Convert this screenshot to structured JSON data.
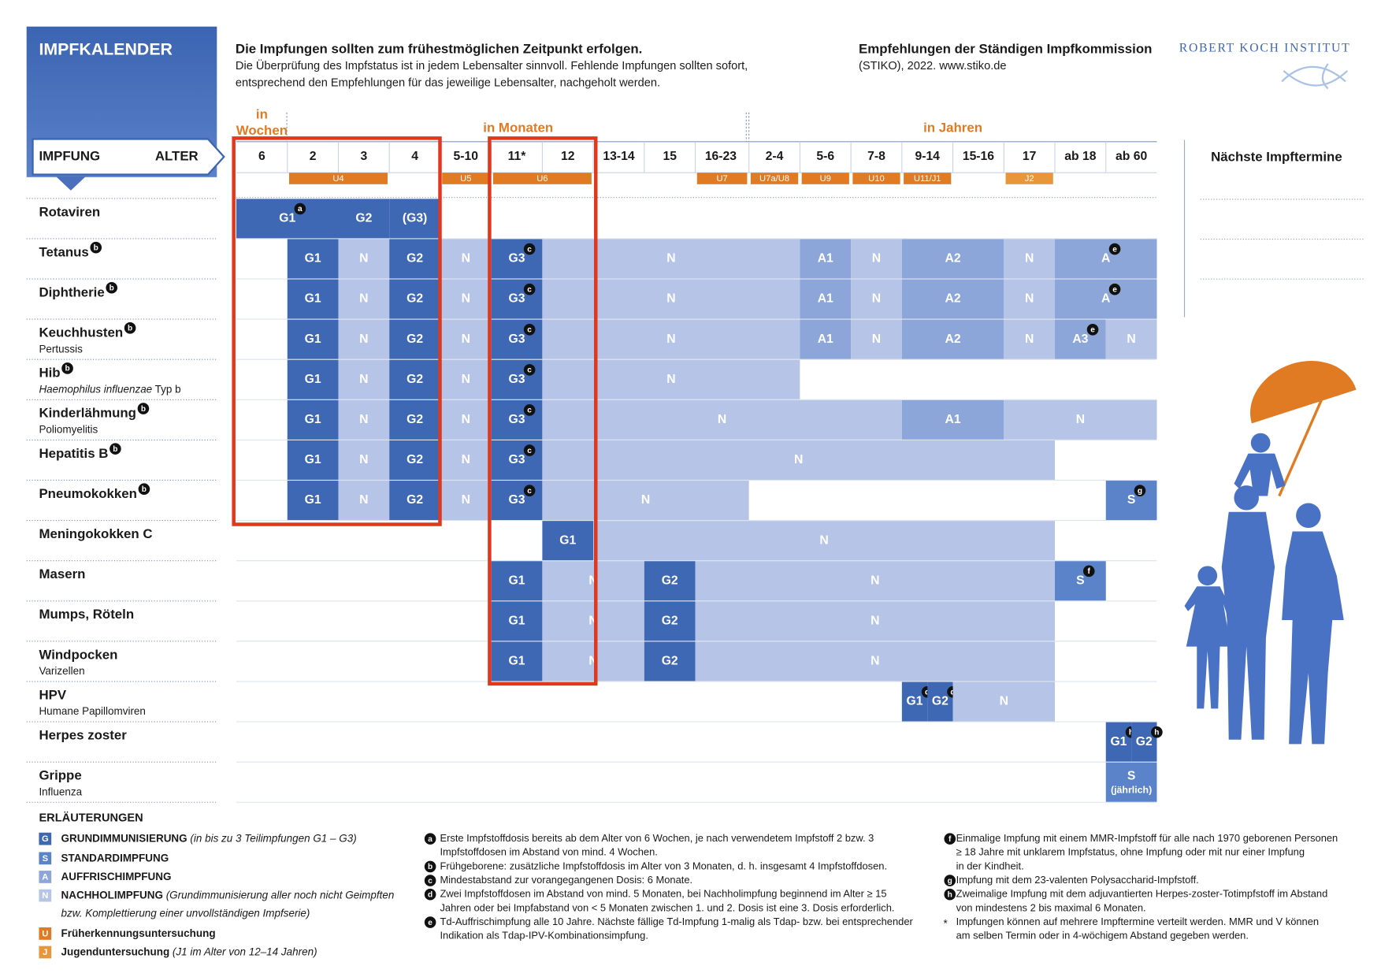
{
  "header": {
    "badge": "IMPFKALENDER",
    "headline": "Die Impfungen sollten zum frühestmöglichen Zeitpunkt erfolgen.",
    "text_lines": [
      "Die Überprüfung des Impfstatus ist in jedem Lebensalter sinnvoll. Fehlende Impfungen sollten sofort,",
      "entsprechend den Empfehlungen für das jeweilige Lebensalter, nachgeholt werden."
    ],
    "source_title": "Empfehlungen der Ständigen Impfkommission",
    "source_line": "(STIKO), 2022. www.stiko.de",
    "institute": "ROBERT KOCH INSTITUT"
  },
  "table": {
    "corner_left": "IMPFUNG",
    "corner_right": "ALTER",
    "groups": [
      {
        "lines": [
          "in",
          "Wochen"
        ]
      },
      {
        "lines": [
          "in Monaten"
        ]
      },
      {
        "lines": [
          "in Jahren"
        ]
      }
    ],
    "ages": [
      "6",
      "2",
      "3",
      "4",
      "5-10",
      "11*",
      "12",
      "13-14",
      "15",
      "16-23",
      "2-4",
      "5-6",
      "7-8",
      "9-14",
      "15-16",
      "17",
      "ab 18",
      "ab 60"
    ],
    "checkups": [
      "U4",
      "U5",
      "U6",
      "U7",
      "U7a/U8",
      "U9",
      "U10",
      "U11/J1",
      "J2"
    ],
    "palette": {
      "G": "#3e67b4",
      "N": "#b5c4e7",
      "A": "#8da6da",
      "S": "#5a83ca"
    },
    "rows": [
      {
        "name": "Rotaviren",
        "cells": [
          {
            "text": "G1",
            "kind": "G",
            "note": "a"
          },
          {
            "text": "G2",
            "kind": "G"
          },
          {
            "text": "(G3)",
            "kind": "G"
          }
        ]
      },
      {
        "name": "Tetanus",
        "note": "b",
        "cells": [
          {
            "text": "G1",
            "kind": "G"
          },
          {
            "text": "N",
            "kind": "N"
          },
          {
            "text": "G2",
            "kind": "G"
          },
          {
            "text": "N",
            "kind": "N"
          },
          {
            "text": "G3",
            "kind": "G",
            "note": "c"
          },
          {
            "text": "N",
            "kind": "N"
          },
          {
            "text": "A1",
            "kind": "A"
          },
          {
            "text": "N",
            "kind": "N"
          },
          {
            "text": "A2",
            "kind": "A"
          },
          {
            "text": "N",
            "kind": "N"
          },
          {
            "text": "A",
            "kind": "A",
            "note": "e"
          }
        ]
      },
      {
        "name": "Diphtherie",
        "note": "b",
        "cells": [
          {
            "text": "G1",
            "kind": "G"
          },
          {
            "text": "N",
            "kind": "N"
          },
          {
            "text": "G2",
            "kind": "G"
          },
          {
            "text": "N",
            "kind": "N"
          },
          {
            "text": "G3",
            "kind": "G",
            "note": "c"
          },
          {
            "text": "N",
            "kind": "N"
          },
          {
            "text": "A1",
            "kind": "A"
          },
          {
            "text": "N",
            "kind": "N"
          },
          {
            "text": "A2",
            "kind": "A"
          },
          {
            "text": "N",
            "kind": "N"
          },
          {
            "text": "A",
            "kind": "A",
            "note": "e"
          }
        ]
      },
      {
        "name": "Keuchhusten",
        "note": "b",
        "subtitle": "Pertussis",
        "cells": [
          {
            "text": "G1",
            "kind": "G"
          },
          {
            "text": "N",
            "kind": "N"
          },
          {
            "text": "G2",
            "kind": "G"
          },
          {
            "text": "N",
            "kind": "N"
          },
          {
            "text": "G3",
            "kind": "G",
            "note": "c"
          },
          {
            "text": "N",
            "kind": "N"
          },
          {
            "text": "A1",
            "kind": "A"
          },
          {
            "text": "N",
            "kind": "N"
          },
          {
            "text": "A2",
            "kind": "A"
          },
          {
            "text": "N",
            "kind": "N"
          },
          {
            "text": "A3",
            "kind": "A",
            "note": "e"
          },
          {
            "text": "N",
            "kind": "N"
          }
        ]
      },
      {
        "name": "Hib",
        "note": "b",
        "subtitle_italic": "Haemophilus influenzae",
        "subtitle": " Typ b",
        "cells": [
          {
            "text": "G1",
            "kind": "G"
          },
          {
            "text": "N",
            "kind": "N"
          },
          {
            "text": "G2",
            "kind": "G"
          },
          {
            "text": "N",
            "kind": "N"
          },
          {
            "text": "G3",
            "kind": "G",
            "note": "c"
          },
          {
            "text": "N",
            "kind": "N"
          }
        ]
      },
      {
        "name": "Kinderlähmung",
        "note": "b",
        "subtitle": "Poliomyelitis",
        "cells": [
          {
            "text": "G1",
            "kind": "G"
          },
          {
            "text": "N",
            "kind": "N"
          },
          {
            "text": "G2",
            "kind": "G"
          },
          {
            "text": "N",
            "kind": "N"
          },
          {
            "text": "G3",
            "kind": "G",
            "note": "c"
          },
          {
            "text": "N",
            "kind": "N"
          },
          {
            "text": "A1",
            "kind": "A"
          },
          {
            "text": "N",
            "kind": "N"
          }
        ]
      },
      {
        "name": "Hepatitis B",
        "note": "b",
        "cells": [
          {
            "text": "G1",
            "kind": "G"
          },
          {
            "text": "N",
            "kind": "N"
          },
          {
            "text": "G2",
            "kind": "G"
          },
          {
            "text": "N",
            "kind": "N"
          },
          {
            "text": "G3",
            "kind": "G",
            "note": "c"
          },
          {
            "text": "N",
            "kind": "N"
          }
        ]
      },
      {
        "name": "Pneumokokken",
        "note": "b",
        "cells": [
          {
            "text": "G1",
            "kind": "G"
          },
          {
            "text": "N",
            "kind": "N"
          },
          {
            "text": "G2",
            "kind": "G"
          },
          {
            "text": "N",
            "kind": "N"
          },
          {
            "text": "G3",
            "kind": "G",
            "note": "c"
          },
          {
            "text": "N",
            "kind": "N"
          },
          {
            "text": "S",
            "kind": "S",
            "note": "g"
          }
        ]
      },
      {
        "name": "Meningokokken C",
        "cells": [
          {
            "text": "G1",
            "kind": "G"
          },
          {
            "text": "N",
            "kind": "N"
          }
        ]
      },
      {
        "name": "Masern",
        "cells": [
          {
            "text": "G1",
            "kind": "G"
          },
          {
            "text": "N",
            "kind": "N"
          },
          {
            "text": "G2",
            "kind": "G"
          },
          {
            "text": "N",
            "kind": "N"
          },
          {
            "text": "S",
            "kind": "S",
            "note": "f"
          }
        ]
      },
      {
        "name": "Mumps, Röteln",
        "cells": [
          {
            "text": "G1",
            "kind": "G"
          },
          {
            "text": "N",
            "kind": "N"
          },
          {
            "text": "G2",
            "kind": "G"
          },
          {
            "text": "N",
            "kind": "N"
          }
        ]
      },
      {
        "name": "Windpocken",
        "subtitle": "Varizellen",
        "cells": [
          {
            "text": "G1",
            "kind": "G"
          },
          {
            "text": "N",
            "kind": "N"
          },
          {
            "text": "G2",
            "kind": "G"
          },
          {
            "text": "N",
            "kind": "N"
          }
        ]
      },
      {
        "name": "HPV",
        "subtitle": "Humane Papillomviren",
        "cells": [
          {
            "text": "G1",
            "kind": "G",
            "note": "d"
          },
          {
            "text": "G2",
            "kind": "G",
            "note": "d"
          },
          {
            "text": "N",
            "kind": "N"
          }
        ]
      },
      {
        "name": "Herpes zoster",
        "cells": [
          {
            "text": "G1",
            "kind": "G",
            "note": "h"
          },
          {
            "text": "G2",
            "kind": "G",
            "note": "h"
          }
        ]
      },
      {
        "name": "Grippe",
        "subtitle": "Influenza",
        "cells": [
          {
            "text": "S",
            "kind": "S",
            "sub": "(jährlich)"
          }
        ]
      }
    ]
  },
  "next_dates": {
    "title": "Nächste Impftermine"
  },
  "legend": {
    "title": "ERLÄUTERUNGEN",
    "items": [
      {
        "key": "G",
        "color": "#3e67b4",
        "label": "GRUNDIMMUNISIERUNG",
        "note": " (in bis zu 3 Teilimpfungen G1 – G3)"
      },
      {
        "key": "S",
        "color": "#5a83ca",
        "label": "STANDARDIMPFUNG"
      },
      {
        "key": "A",
        "color": "#8da6da",
        "label": "AUFFRISCHIMPFUNG"
      },
      {
        "key": "N",
        "color": "#b5c4e7",
        "label": "NACHHOLIMPFUNG",
        "note": " (Grundimmunisierung aller noch nicht Geimpften",
        "note_continued": "bzw. Komplettierung einer unvollständigen Impfserie)"
      },
      {
        "key": "U",
        "color": "#e07b24",
        "label": "Früherkennungsuntersuchung"
      },
      {
        "key": "J",
        "color": "#e8963a",
        "label": "Jugenduntersuchung",
        "note": " (J1 im Alter von 12–14 Jahren)"
      }
    ]
  },
  "footnotes": [
    [
      {
        "letter": "a",
        "lines": [
          "Erste Impfstoffdosis bereits ab dem Alter von 6 Wochen, je nach verwendetem Impfstoff 2 bzw. 3",
          "Impfstoffdosen im Abstand von mind. 4 Wochen."
        ]
      },
      {
        "letter": "b",
        "lines": [
          "Frühgeborene: zusätzliche Impfstoffdosis im Alter von 3 Monaten, d. h. insgesamt 4 Impfstoffdosen."
        ]
      },
      {
        "letter": "c",
        "lines": [
          "Mindestabstand zur vorangegangenen Dosis: 6 Monate."
        ]
      },
      {
        "letter": "d",
        "lines": [
          "Zwei Impfstoffdosen im Abstand von mind. 5 Monaten, bei Nachholimpfung beginnend im Alter ≥ 15",
          "Jahren oder bei Impfabstand von < 5 Monaten zwischen 1. und 2. Dosis ist eine 3. Dosis erforderlich."
        ]
      },
      {
        "letter": "e",
        "lines": [
          "Td-Auffrischimpfung alle 10 Jahre. Nächste fällige Td-Impfung 1-malig als Tdap- bzw. bei entsprechender",
          "Indikation als Tdap-IPV-Kombinationsimpfung."
        ]
      }
    ],
    [
      {
        "letter": "f",
        "lines": [
          "Einmalige Impfung mit einem MMR-Impfstoff für alle nach 1970 geborenen Personen",
          "≥ 18 Jahre mit unklarem Impfstatus, ohne Impfung oder mit nur einer Impfung",
          "in der Kindheit."
        ]
      },
      {
        "letter": "g",
        "lines": [
          "Impfung mit dem 23-valenten Polysaccharid-Impfstoff."
        ]
      },
      {
        "letter": "h",
        "lines": [
          "Zweimalige Impfung mit dem adjuvantierten Herpes-zoster-Totimpfstoff im Abstand",
          "von mindestens 2 bis maximal 6 Monaten."
        ]
      },
      {
        "letter": "*",
        "lines": [
          "Impfungen können auf mehrere Impftermine verteilt werden. MMR und V können",
          "am selben Termin oder in 4-wöchigem Abstand gegeben werden."
        ]
      }
    ]
  ]
}
